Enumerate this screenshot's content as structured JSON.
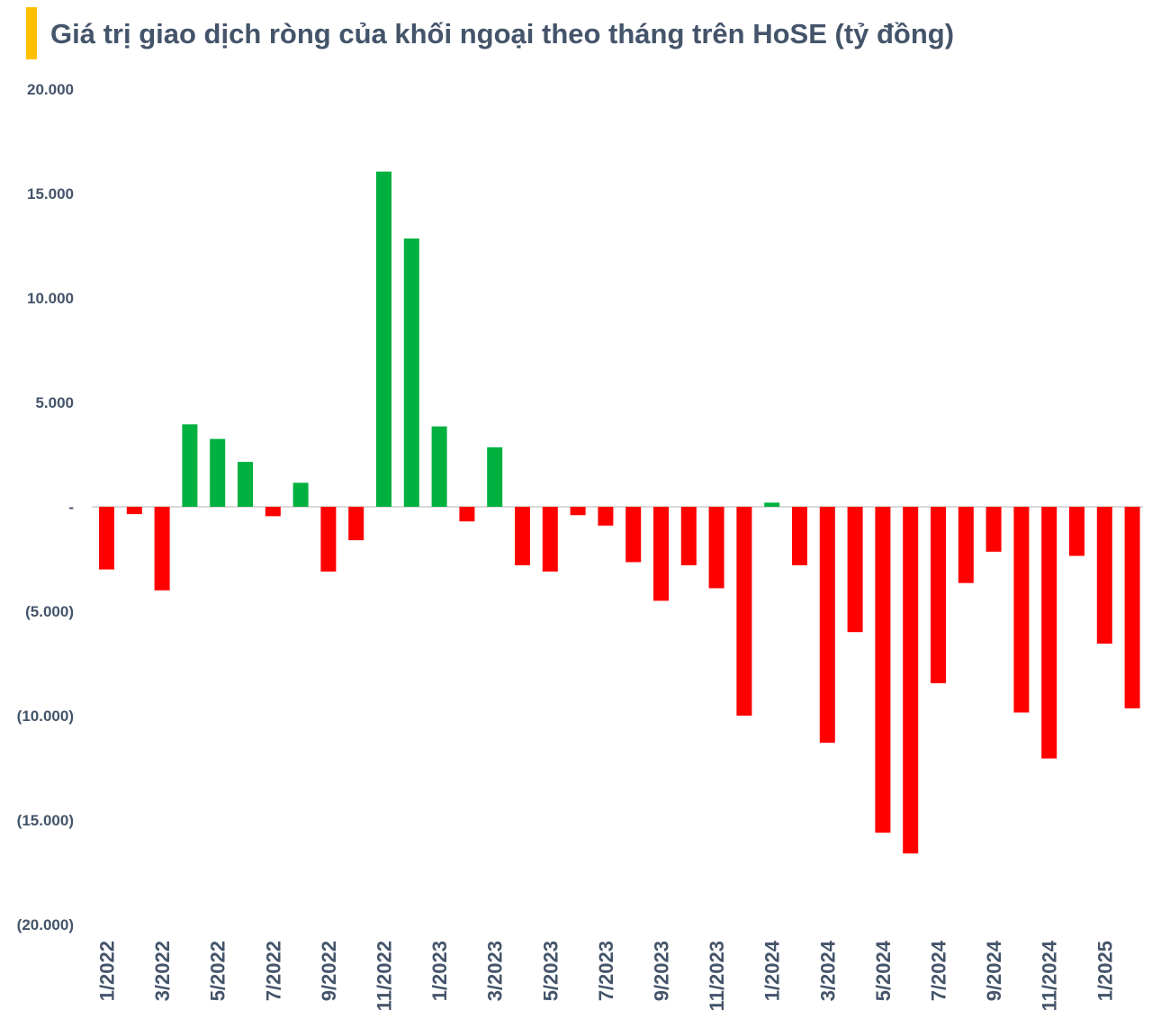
{
  "title": "Giá trị giao dịch ròng của khối ngoại theo tháng trên HoSE (tỷ đồng)",
  "colors": {
    "positive": "#00B140",
    "negative": "#FF0000",
    "accent": "#FFC000",
    "text": "#44546A",
    "zero_line": "#D9D9D9"
  },
  "chart_data": {
    "type": "bar",
    "title": "Giá trị giao dịch ròng của khối ngoại theo tháng trên HoSE (tỷ đồng)",
    "ylim": [
      -20000,
      20000
    ],
    "y_ticks": [
      20000,
      15000,
      10000,
      5000,
      0,
      -5000,
      -10000,
      -15000,
      -20000
    ],
    "y_tick_labels": [
      "20.000",
      "15.000",
      "10.000",
      "5.000",
      "-",
      "(5.000)",
      "(10.000)",
      "(15.000)",
      "(20.000)"
    ],
    "categories": [
      "1/2022",
      "2/2022",
      "3/2022",
      "4/2022",
      "5/2022",
      "6/2022",
      "7/2022",
      "8/2022",
      "9/2022",
      "10/2022",
      "11/2022",
      "12/2022",
      "1/2023",
      "2/2023",
      "3/2023",
      "4/2023",
      "5/2023",
      "6/2023",
      "7/2023",
      "8/2023",
      "9/2023",
      "10/2023",
      "11/2023",
      "12/2023",
      "1/2024",
      "2/2024",
      "3/2024",
      "4/2024",
      "5/2024",
      "6/2024",
      "7/2024",
      "8/2024",
      "9/2024",
      "10/2024",
      "11/2024",
      "12/2024",
      "1/2025",
      "2/2025"
    ],
    "x_tick_labels_shown": [
      "1/2022",
      "3/2022",
      "5/2022",
      "7/2022",
      "9/2022",
      "11/2022",
      "1/2023",
      "3/2023",
      "5/2023",
      "7/2023",
      "9/2023",
      "11/2023",
      "1/2024",
      "3/2024",
      "5/2024",
      "7/2024",
      "9/2024",
      "11/2024",
      "1/2025"
    ],
    "values": [
      -3000,
      -350,
      -4000,
      3950,
      3250,
      2150,
      -450,
      1150,
      -3100,
      -1600,
      16050,
      12850,
      3850,
      -700,
      2850,
      -2800,
      -3100,
      -400,
      -900,
      -2650,
      -4500,
      -2800,
      -3900,
      -10000,
      200,
      -2800,
      -11300,
      -6000,
      -15600,
      -16600,
      -8450,
      -3650,
      -2150,
      -9850,
      -12050,
      -2350,
      -6550,
      -9650
    ]
  }
}
